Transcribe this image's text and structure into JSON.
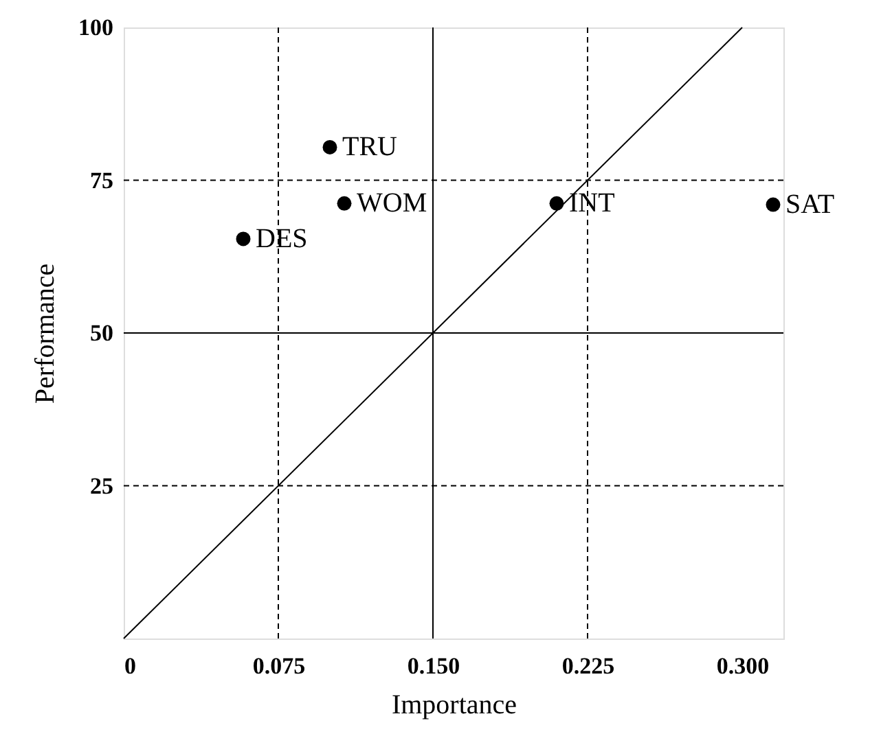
{
  "chart_data": {
    "type": "scatter",
    "xlabel": "Importance",
    "ylabel": "Performance",
    "xlim": [
      0,
      0.32
    ],
    "ylim": [
      0,
      100
    ],
    "xticks": [
      0,
      {
        "value": 0.075,
        "label": "0.075"
      },
      {
        "value": 0.15,
        "label": "0.150"
      },
      {
        "value": 0.225,
        "label": "0.225"
      },
      {
        "value": 0.3,
        "label": "0.300"
      }
    ],
    "yticks": [
      25,
      50,
      75,
      100
    ],
    "grid": false,
    "marker": "circle",
    "series": [
      {
        "color": "#000000",
        "x": [
          0.1,
          0.107,
          0.058,
          0.21,
          0.315
        ],
        "values": [
          80.4,
          71.2,
          65.4,
          71.2,
          71
        ]
      },
      {
        "type": "line",
        "color": "#000000",
        "line_style": "solid",
        "marker": "none",
        "x": [
          0,
          0.3
        ],
        "values": [
          0,
          100
        ]
      }
    ],
    "ref_lines": [
      {
        "axis": "x",
        "value": 0.075,
        "line_style": "dashed",
        "color": "#000000"
      },
      {
        "axis": "x",
        "value": 0.15,
        "line_style": "solid",
        "color": "#000000"
      },
      {
        "axis": "x",
        "value": 0.225,
        "line_style": "dashed",
        "color": "#000000"
      },
      {
        "axis": "y",
        "value": 25,
        "line_style": "dashed",
        "color": "#000000"
      },
      {
        "axis": "y",
        "value": 50,
        "line_style": "solid",
        "color": "#000000"
      },
      {
        "axis": "y",
        "value": 75,
        "line_style": "dashed",
        "color": "#000000"
      }
    ],
    "annotations": [
      {
        "text": "TRU",
        "x": 0.1,
        "y": 80.4
      },
      {
        "text": "WOM",
        "x": 0.107,
        "y": 71.2
      },
      {
        "text": "DES",
        "x": 0.058,
        "y": 65.4
      },
      {
        "text": "INT",
        "x": 0.21,
        "y": 71.2
      },
      {
        "text": "SAT",
        "x": 0.315,
        "y": 71
      }
    ]
  }
}
